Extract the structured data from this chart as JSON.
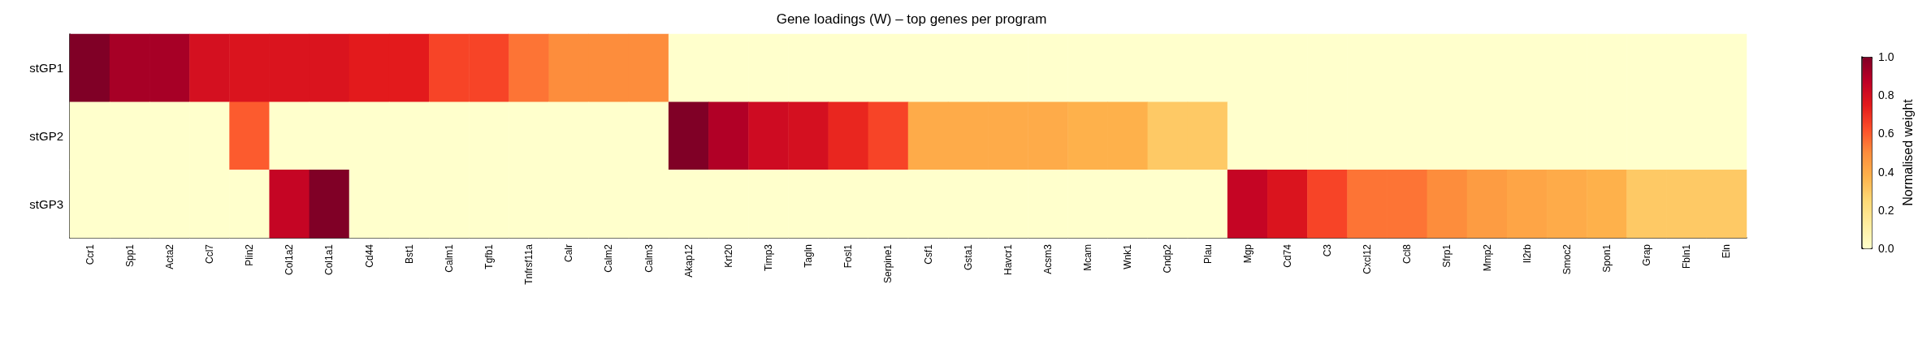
{
  "chart_data": {
    "type": "heatmap",
    "title": "Gene loadings (W) – top genes per program",
    "categories": [
      "Ccr1",
      "Spp1",
      "Acta2",
      "Ccl7",
      "Plin2",
      "Col1a2",
      "Col1a1",
      "Cd44",
      "Bst1",
      "Calm1",
      "Tgfb1",
      "Tnfrsf11a",
      "Calr",
      "Calm2",
      "Calm3",
      "Akap12",
      "Krt20",
      "Timp3",
      "Tagln",
      "Fosl1",
      "Serpine1",
      "Csf1",
      "Gsta1",
      "Havcr1",
      "Acsm3",
      "Mcam",
      "Wnk1",
      "Cndp2",
      "Plau",
      "Mgp",
      "Cd74",
      "C3",
      "Cxcl12",
      "Ccl8",
      "Sfrp1",
      "Mmp2",
      "Il2rb",
      "Smoc2",
      "Spon1",
      "Grap",
      "Fbln1",
      "Eln"
    ],
    "y_categories": [
      "stGP1",
      "stGP2",
      "stGP3"
    ],
    "cells": [
      [
        1.0,
        0.92,
        0.92,
        0.8,
        0.78,
        0.78,
        0.78,
        0.75,
        0.75,
        0.65,
        0.65,
        0.55,
        0.5,
        0.5,
        0.5,
        0,
        0,
        0,
        0,
        0,
        0,
        0,
        0,
        0,
        0,
        0,
        0,
        0,
        0,
        0,
        0,
        0,
        0,
        0,
        0,
        0,
        0,
        0,
        0,
        0,
        0,
        0
      ],
      [
        0,
        0,
        0,
        0,
        0.6,
        0,
        0,
        0,
        0,
        0,
        0,
        0,
        0,
        0,
        0,
        1.0,
        0.9,
        0.82,
        0.8,
        0.72,
        0.65,
        0.4,
        0.4,
        0.4,
        0.4,
        0.38,
        0.38,
        0.3,
        0.3,
        0,
        0,
        0,
        0,
        0,
        0,
        0,
        0,
        0,
        0,
        0,
        0,
        0
      ],
      [
        0,
        0,
        0,
        0,
        0,
        0.85,
        1.0,
        0,
        0,
        0,
        0,
        0,
        0,
        0,
        0,
        0,
        0,
        0,
        0,
        0,
        0,
        0,
        0,
        0,
        0,
        0,
        0,
        0,
        0,
        0.85,
        0.78,
        0.65,
        0.55,
        0.55,
        0.5,
        0.45,
        0.42,
        0.4,
        0.38,
        0.3,
        0.3,
        0.3
      ]
    ],
    "clabel": "Normalised weight",
    "clim": [
      0,
      1.0
    ],
    "cticks": [
      {
        "value": 0,
        "label": "0.0"
      },
      {
        "value": 0.2,
        "label": "0.2"
      },
      {
        "value": 0.4,
        "label": "0.4"
      },
      {
        "value": 0.6,
        "label": "0.6"
      },
      {
        "value": 0.8,
        "label": "0.8"
      },
      {
        "value": 1.0,
        "label": "1.0"
      }
    ]
  }
}
